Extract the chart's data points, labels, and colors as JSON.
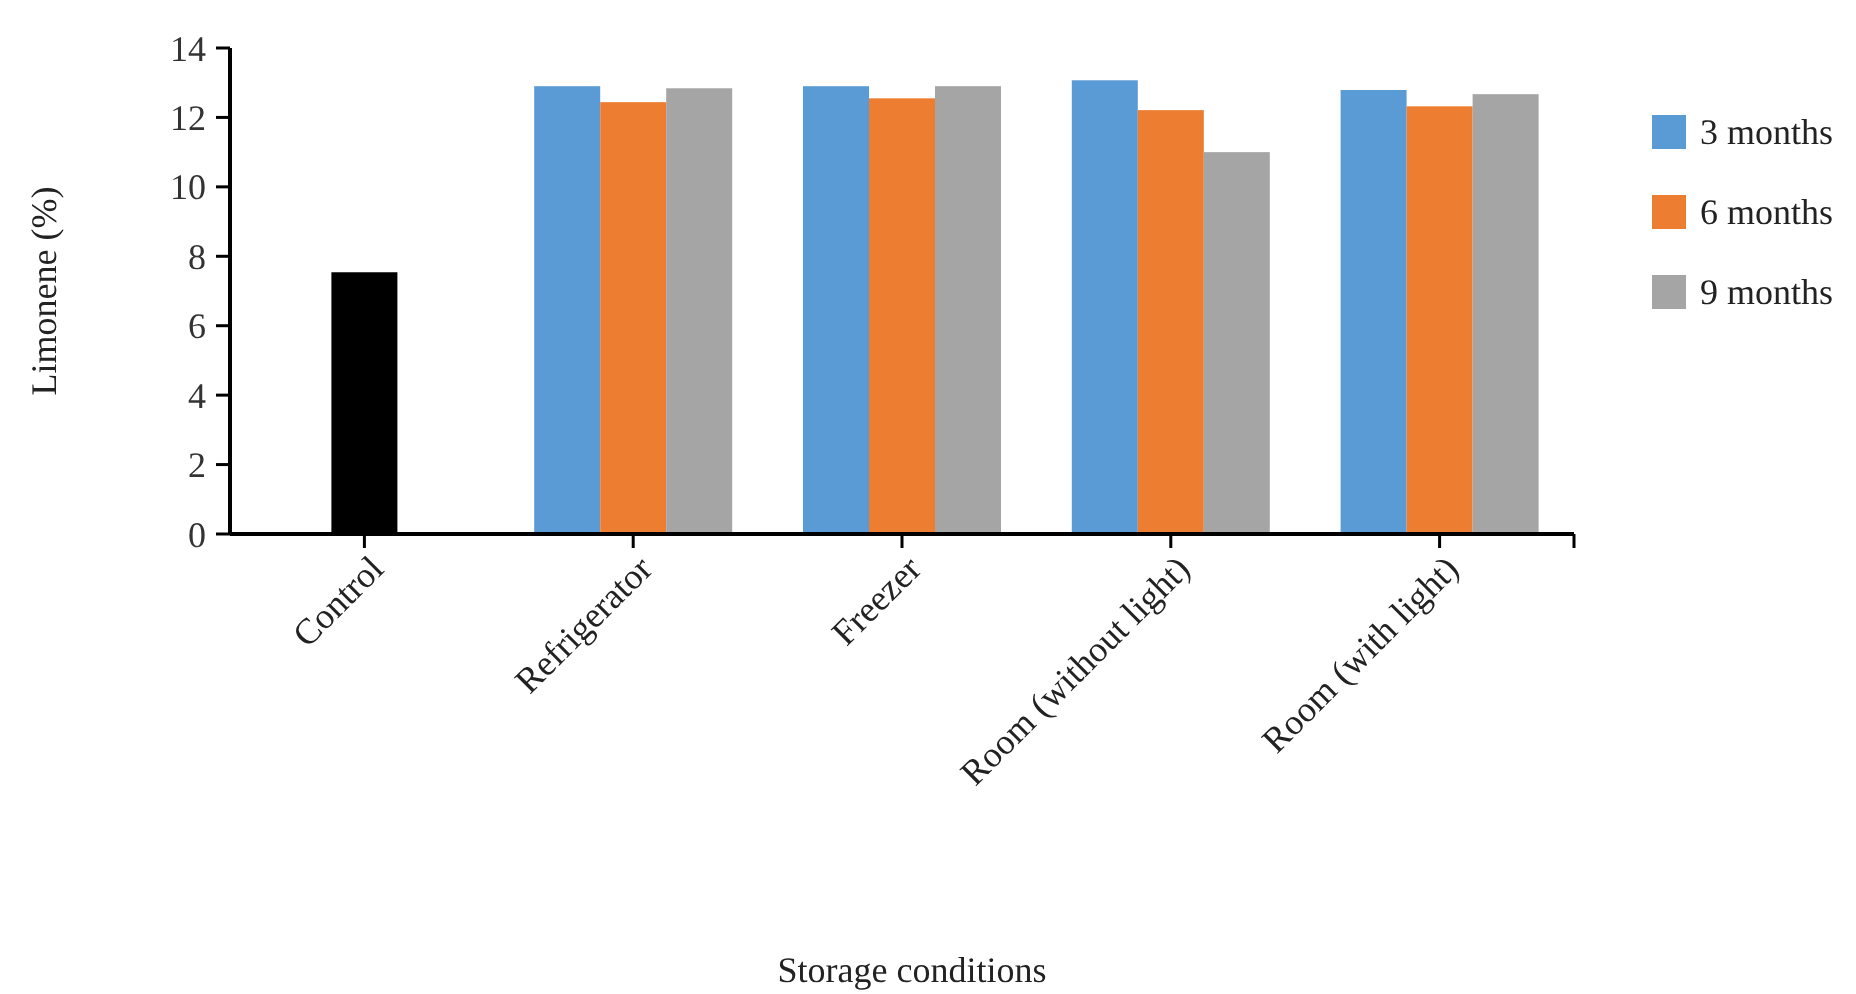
{
  "chart_data": {
    "type": "bar",
    "xlabel": "Storage conditions",
    "ylabel": "Limonene (%)",
    "categories": [
      "Control",
      "Refrigerator",
      "Freezer",
      "Room (without light)",
      "Room (with light)"
    ],
    "series": [
      {
        "color": "#000000",
        "values": [
          7.54,
          null,
          null,
          null,
          null
        ]
      },
      {
        "name": "3 months",
        "color": "#5b9bd5",
        "values": [
          null,
          12.9,
          12.9,
          13.07,
          12.79
        ]
      },
      {
        "name": "6 months",
        "color": "#ed7d31",
        "values": [
          null,
          12.44,
          12.55,
          12.21,
          12.32
        ]
      },
      {
        "name": "9 months",
        "color": "#a5a5a5",
        "values": [
          null,
          12.84,
          12.9,
          11.0,
          12.67
        ]
      }
    ],
    "ylim": [
      0,
      14
    ],
    "yticks": [
      0,
      2,
      4,
      6,
      8,
      10,
      12,
      14
    ],
    "grid": false,
    "legend": "right"
  }
}
